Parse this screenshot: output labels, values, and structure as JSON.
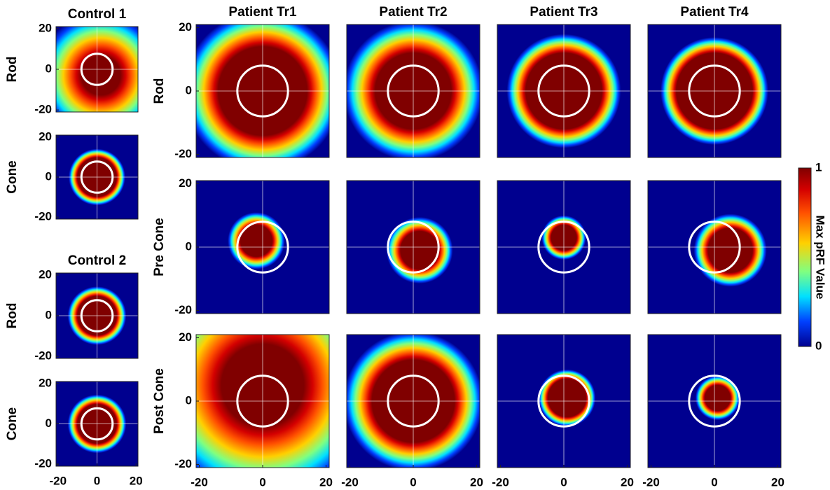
{
  "chart_data": [
    {
      "type": "heatmap",
      "title": "Control 1",
      "ylabel": "Rod",
      "xlim": [
        -21,
        21
      ],
      "ylim": [
        -21,
        21
      ],
      "yticks": [
        -20,
        0,
        20
      ]
    },
    {
      "type": "heatmap",
      "ylabel": "Cone",
      "xlim": [
        -21,
        21
      ],
      "ylim": [
        -21,
        21
      ],
      "yticks": [
        -20,
        0,
        20
      ]
    },
    {
      "type": "heatmap",
      "title": "Control 2",
      "ylabel": "Rod",
      "xlim": [
        -21,
        21
      ],
      "ylim": [
        -21,
        21
      ],
      "yticks": [
        -20,
        0,
        20
      ]
    },
    {
      "type": "heatmap",
      "ylabel": "Cone",
      "xlim": [
        -21,
        21
      ],
      "ylim": [
        -21,
        21
      ],
      "yticks": [
        -20,
        0,
        20
      ],
      "xticks": [
        -20,
        0,
        20
      ]
    },
    {
      "type": "heatmap",
      "title": "Patient Tr1",
      "ylabel": "Rod",
      "xlim": [
        -21,
        21
      ],
      "ylim": [
        -21,
        21
      ],
      "yticks": [
        -20,
        0,
        20
      ]
    },
    {
      "type": "heatmap",
      "title": "Patient Tr2",
      "xlim": [
        -21,
        21
      ],
      "ylim": [
        -21,
        21
      ]
    },
    {
      "type": "heatmap",
      "title": "Patient Tr3",
      "xlim": [
        -21,
        21
      ],
      "ylim": [
        -21,
        21
      ]
    },
    {
      "type": "heatmap",
      "title": "Patient Tr4",
      "xlim": [
        -21,
        21
      ],
      "ylim": [
        -21,
        21
      ]
    },
    {
      "type": "heatmap",
      "ylabel": "Pre Cone",
      "xlim": [
        -21,
        21
      ],
      "ylim": [
        -21,
        21
      ],
      "yticks": [
        -20,
        0,
        20
      ]
    },
    {
      "type": "heatmap",
      "xlim": [
        -21,
        21
      ],
      "ylim": [
        -21,
        21
      ]
    },
    {
      "type": "heatmap",
      "xlim": [
        -21,
        21
      ],
      "ylim": [
        -21,
        21
      ]
    },
    {
      "type": "heatmap",
      "xlim": [
        -21,
        21
      ],
      "ylim": [
        -21,
        21
      ]
    },
    {
      "type": "heatmap",
      "ylabel": "Post Cone",
      "xlim": [
        -21,
        21
      ],
      "ylim": [
        -21,
        21
      ],
      "yticks": [
        -20,
        0,
        20
      ],
      "xticks": [
        -20,
        0,
        20
      ]
    },
    {
      "type": "heatmap",
      "xlim": [
        -21,
        21
      ],
      "ylim": [
        -21,
        21
      ],
      "xticks": [
        -20,
        0,
        20
      ]
    },
    {
      "type": "heatmap",
      "xlim": [
        -21,
        21
      ],
      "ylim": [
        -21,
        21
      ],
      "xticks": [
        -20,
        0,
        20
      ]
    },
    {
      "type": "heatmap",
      "xlim": [
        -21,
        21
      ],
      "ylim": [
        -21,
        21
      ],
      "xticks": [
        -20,
        0,
        20
      ]
    }
  ],
  "colorbar": {
    "label": "Max pRF Value",
    "lim": [
      0,
      1
    ],
    "ticks": [
      0,
      1
    ],
    "colormap": "jet"
  }
}
